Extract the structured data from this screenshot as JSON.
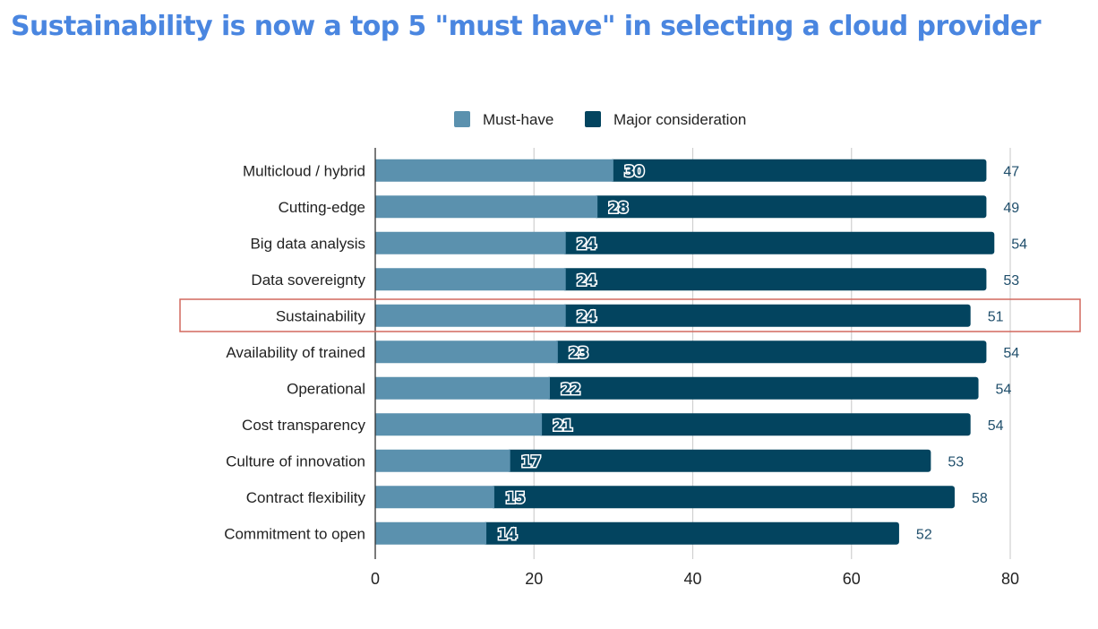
{
  "title": "Sustainability is now a top 5 \"must have\" in selecting a cloud provider",
  "colors": {
    "title": "#4a86e0",
    "must_have": "#5b91ae",
    "major_consideration": "#03445f",
    "highlight_box": "#d2695e",
    "grid": "#d0d0d0",
    "axis": "#333333"
  },
  "chart_data": {
    "type": "bar",
    "orientation": "horizontal",
    "stacked": true,
    "title": "Sustainability is now a top 5 \"must have\" in selecting a cloud provider",
    "xlabel": "",
    "ylabel": "",
    "xlim": [
      0,
      80
    ],
    "x_ticks": [
      0,
      20,
      40,
      60,
      80
    ],
    "grid": true,
    "legend_position": "top",
    "categories": [
      "Multicloud / hybrid",
      "Cutting-edge",
      "Big data analysis",
      "Data sovereignty",
      "Sustainability",
      "Availability of trained",
      "Operational",
      "Cost transparency",
      "Culture of innovation",
      "Contract flexibility",
      "Commitment to open"
    ],
    "series": [
      {
        "name": "Must-have",
        "values": [
          30,
          28,
          24,
          24,
          24,
          23,
          22,
          21,
          17,
          15,
          14
        ]
      },
      {
        "name": "Major consideration",
        "values": [
          47,
          49,
          54,
          53,
          51,
          54,
          54,
          54,
          53,
          58,
          52
        ]
      }
    ],
    "highlighted_category": "Sustainability"
  }
}
